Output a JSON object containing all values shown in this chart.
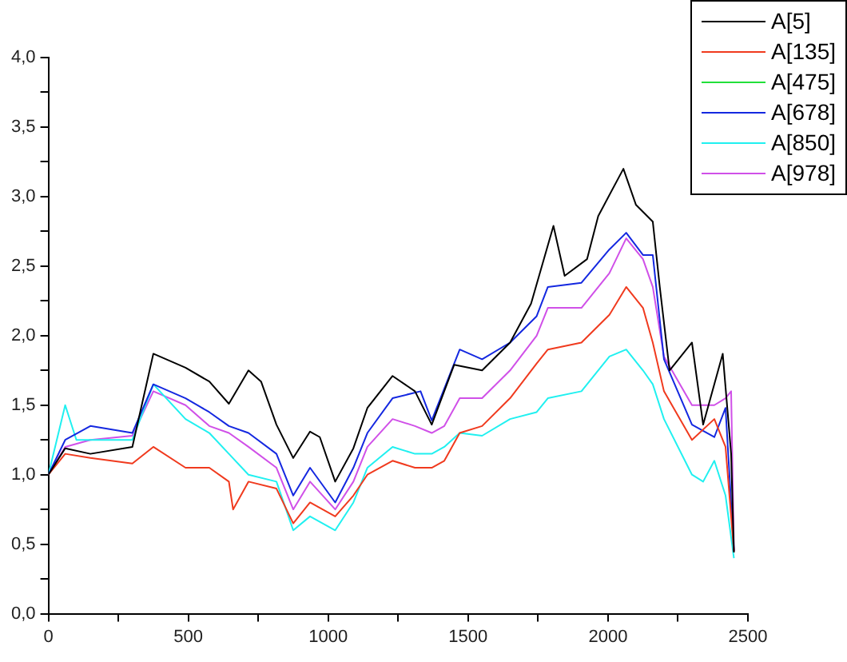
{
  "chart_data": {
    "type": "line",
    "xlim": [
      0,
      2500
    ],
    "ylim": [
      0,
      4
    ],
    "xticks": [
      0,
      {
        "value": 250,
        "label": null
      },
      500,
      {
        "value": 750,
        "label": null
      },
      1000,
      {
        "value": 1250,
        "label": null
      },
      1500,
      {
        "value": 1750,
        "label": null
      },
      2000,
      {
        "value": 2250,
        "label": null
      },
      2500
    ],
    "yticks": [
      {
        "value": 0,
        "label": "0,0"
      },
      {
        "value": 0.25,
        "label": null
      },
      {
        "value": 0.5,
        "label": "0,5"
      },
      {
        "value": 0.75,
        "label": null
      },
      {
        "value": 1,
        "label": "1,0"
      },
      {
        "value": 1.25,
        "label": null
      },
      {
        "value": 1.5,
        "label": "1,5"
      },
      {
        "value": 1.75,
        "label": null
      },
      {
        "value": 2,
        "label": "2,0"
      },
      {
        "value": 2.25,
        "label": null
      },
      {
        "value": 2.5,
        "label": "2,5"
      },
      {
        "value": 2.75,
        "label": null
      },
      {
        "value": 3,
        "label": "3,0"
      },
      {
        "value": 3.25,
        "label": null
      },
      {
        "value": 3.5,
        "label": "3,5"
      },
      {
        "value": 3.75,
        "label": null
      },
      {
        "value": 4,
        "label": "4,0"
      }
    ],
    "grid": false,
    "legend": "top right",
    "marker": "none",
    "line_style": "solid",
    "series": [
      {
        "name": "A[5]",
        "color": "#000000",
        "x": [
          0,
          60,
          150,
          300,
          375,
          490,
          575,
          645,
          715,
          760,
          815,
          875,
          935,
          970,
          1025,
          1090,
          1140,
          1230,
          1310,
          1370,
          1450,
          1550,
          1650,
          1725,
          1805,
          1845,
          1925,
          1965,
          2055,
          2100,
          2160,
          2185,
          2220,
          2300,
          2340,
          2410,
          2440,
          2450
        ],
        "values": [
          1.0,
          1.19,
          1.15,
          1.2,
          1.87,
          1.77,
          1.67,
          1.51,
          1.75,
          1.67,
          1.36,
          1.12,
          1.31,
          1.27,
          0.95,
          1.19,
          1.48,
          1.71,
          1.6,
          1.36,
          1.79,
          1.75,
          1.95,
          2.23,
          2.79,
          2.43,
          2.55,
          2.86,
          3.2,
          2.94,
          2.82,
          2.35,
          1.75,
          1.95,
          1.36,
          1.87,
          1.15,
          0.44
        ]
      },
      {
        "name": "A[135]",
        "color": "#f03a1e",
        "x": [
          0,
          60,
          150,
          300,
          375,
          490,
          575,
          645,
          660,
          715,
          815,
          875,
          935,
          1025,
          1090,
          1140,
          1230,
          1310,
          1370,
          1415,
          1470,
          1550,
          1650,
          1745,
          1785,
          1905,
          2005,
          2065,
          2125,
          2160,
          2200,
          2300,
          2380,
          2420,
          2450
        ],
        "values": [
          1.0,
          1.15,
          1.12,
          1.08,
          1.2,
          1.05,
          1.05,
          0.95,
          0.75,
          0.95,
          0.9,
          0.65,
          0.8,
          0.7,
          0.85,
          1.0,
          1.1,
          1.05,
          1.05,
          1.1,
          1.3,
          1.35,
          1.55,
          1.8,
          1.9,
          1.95,
          2.15,
          2.35,
          2.2,
          1.95,
          1.6,
          1.25,
          1.4,
          1.2,
          0.45
        ]
      },
      {
        "name": "A[475]",
        "color": "#22e03a"
      },
      {
        "name": "A[678]",
        "color": "#1428e0",
        "x": [
          0,
          60,
          150,
          300,
          375,
          490,
          575,
          645,
          715,
          815,
          875,
          935,
          1025,
          1090,
          1140,
          1230,
          1330,
          1370,
          1470,
          1550,
          1650,
          1745,
          1785,
          1905,
          2005,
          2065,
          2125,
          2160,
          2200,
          2300,
          2380,
          2420,
          2450
        ],
        "values": [
          1.0,
          1.25,
          1.35,
          1.3,
          1.65,
          1.55,
          1.45,
          1.35,
          1.3,
          1.15,
          0.85,
          1.05,
          0.8,
          1.05,
          1.3,
          1.55,
          1.6,
          1.39,
          1.9,
          1.83,
          1.95,
          2.14,
          2.35,
          2.38,
          2.62,
          2.74,
          2.58,
          2.58,
          1.83,
          1.36,
          1.27,
          1.48,
          0.45
        ]
      },
      {
        "name": "A[850]",
        "color": "#20f0f0",
        "x": [
          0,
          60,
          100,
          150,
          300,
          375,
          490,
          575,
          645,
          715,
          815,
          875,
          935,
          1025,
          1090,
          1140,
          1230,
          1310,
          1370,
          1415,
          1470,
          1550,
          1650,
          1745,
          1785,
          1905,
          2005,
          2065,
          2125,
          2160,
          2200,
          2300,
          2340,
          2380,
          2420,
          2450
        ],
        "values": [
          1.0,
          1.5,
          1.25,
          1.25,
          1.25,
          1.65,
          1.4,
          1.3,
          1.15,
          1.0,
          0.95,
          0.6,
          0.7,
          0.6,
          0.8,
          1.05,
          1.2,
          1.15,
          1.15,
          1.2,
          1.3,
          1.28,
          1.4,
          1.45,
          1.55,
          1.6,
          1.85,
          1.9,
          1.75,
          1.65,
          1.4,
          1.0,
          0.95,
          1.1,
          0.85,
          0.4
        ]
      },
      {
        "name": "A[978]",
        "color": "#d050e8",
        "x": [
          0,
          60,
          150,
          300,
          375,
          490,
          575,
          645,
          715,
          815,
          875,
          935,
          1025,
          1090,
          1140,
          1230,
          1310,
          1370,
          1415,
          1470,
          1550,
          1650,
          1745,
          1785,
          1905,
          2005,
          2065,
          2125,
          2160,
          2200,
          2300,
          2380,
          2420,
          2440,
          2450
        ],
        "values": [
          1.0,
          1.2,
          1.25,
          1.28,
          1.6,
          1.5,
          1.35,
          1.3,
          1.2,
          1.05,
          0.75,
          0.95,
          0.75,
          0.95,
          1.2,
          1.4,
          1.35,
          1.3,
          1.35,
          1.55,
          1.55,
          1.75,
          2.0,
          2.2,
          2.2,
          2.45,
          2.7,
          2.55,
          2.35,
          1.85,
          1.5,
          1.5,
          1.55,
          1.6,
          0.45
        ]
      }
    ]
  }
}
